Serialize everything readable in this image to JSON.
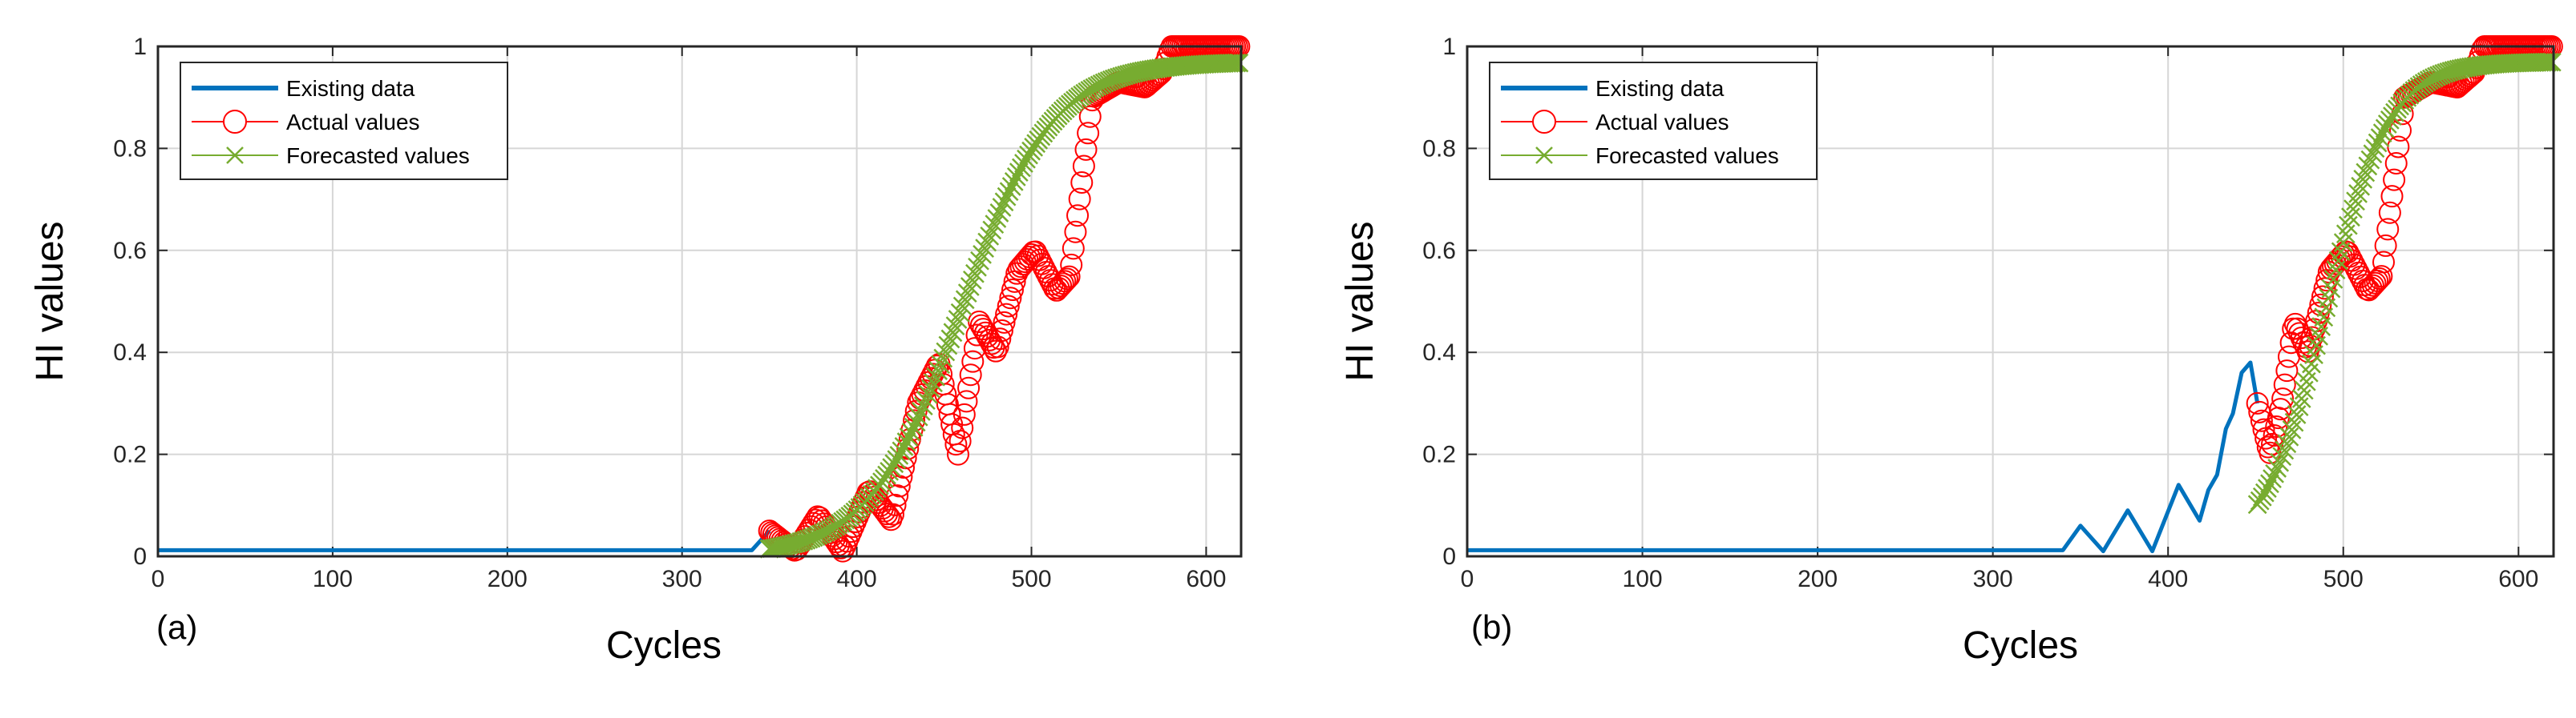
{
  "colors": {
    "existing": "#0072BD",
    "actual": "#FF0000",
    "forecast": "#77AC30",
    "grid": "#d6d6d6",
    "axis": "#262626"
  },
  "chart_data": [
    {
      "type": "line",
      "panel_label": "(a)",
      "xlabel": "Cycles",
      "ylabel": "HI values",
      "xlim": [
        0,
        620
      ],
      "ylim": [
        0,
        1
      ],
      "xticks": [
        0,
        100,
        200,
        300,
        400,
        500,
        600
      ],
      "yticks": [
        "0",
        "0.2",
        "0.4",
        "0.6",
        "0.8",
        "1"
      ],
      "grid": true,
      "legend_position": "top-left",
      "series": [
        {
          "name": "Existing data",
          "style": "line",
          "x": [
            0,
            340,
            350
          ],
          "y": [
            0.012,
            0.012,
            0.05
          ]
        },
        {
          "name": "Actual values",
          "style": "circle-markers",
          "x": [
            350,
            365,
            378,
            392,
            407,
            420,
            435,
            447,
            458,
            470,
            480,
            492,
            502,
            514,
            522,
            535,
            550,
            565,
            575,
            580,
            600,
            620
          ],
          "y": [
            0.05,
            0.01,
            0.08,
            0.01,
            0.13,
            0.07,
            0.3,
            0.38,
            0.2,
            0.46,
            0.4,
            0.56,
            0.6,
            0.52,
            0.55,
            0.9,
            0.93,
            0.92,
            0.95,
            1.0,
            1.0,
            1.0
          ]
        },
        {
          "name": "Forecasted values",
          "style": "x-markers",
          "x": [
            350,
            620
          ],
          "logistic": {
            "L": 0.97,
            "x0": 460,
            "k": 0.038
          }
        }
      ]
    },
    {
      "type": "line",
      "panel_label": "(b)",
      "xlabel": "Cycles",
      "ylabel": "HI values",
      "xlim": [
        0,
        620
      ],
      "ylim": [
        0,
        1
      ],
      "xticks": [
        0,
        100,
        200,
        300,
        400,
        500,
        600
      ],
      "yticks": [
        "0",
        "0.2",
        "0.4",
        "0.6",
        "0.8",
        "1"
      ],
      "grid": true,
      "legend_position": "top-left",
      "series": [
        {
          "name": "Existing data",
          "style": "line",
          "x": [
            0,
            340,
            350,
            363,
            377,
            391,
            406,
            418,
            423,
            428,
            433,
            437,
            442,
            447,
            451
          ],
          "y": [
            0.012,
            0.012,
            0.06,
            0.01,
            0.09,
            0.01,
            0.14,
            0.07,
            0.13,
            0.16,
            0.25,
            0.28,
            0.36,
            0.38,
            0.3
          ]
        },
        {
          "name": "Actual values",
          "style": "circle-markers",
          "x": [
            451,
            458,
            465,
            472,
            480,
            492,
            502,
            514,
            522,
            535,
            550,
            565,
            575,
            580,
            600,
            620
          ],
          "y": [
            0.3,
            0.2,
            0.3,
            0.46,
            0.4,
            0.56,
            0.6,
            0.52,
            0.55,
            0.9,
            0.93,
            0.92,
            0.95,
            1.0,
            1.0,
            1.0
          ]
        },
        {
          "name": "Forecasted values",
          "style": "x-markers",
          "x": [
            451,
            620
          ],
          "logistic": {
            "L": 0.97,
            "x0": 490,
            "k": 0.055
          }
        }
      ]
    }
  ]
}
